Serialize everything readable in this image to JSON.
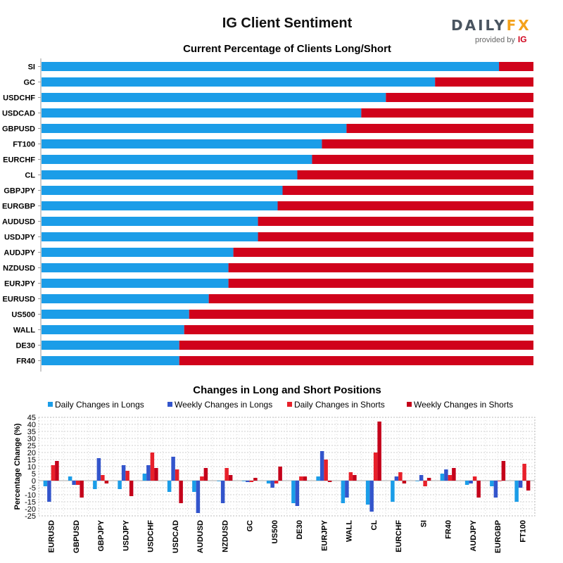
{
  "header": {
    "title": "IG Client Sentiment",
    "logo_daily": "DAILY",
    "logo_fx": "FX",
    "logo_provided": "provided by",
    "logo_ig": "IG"
  },
  "colors": {
    "long": "#1b9de8",
    "short": "#d0021b",
    "daily_long": "#1b9de8",
    "weekly_long": "#3355cc",
    "daily_short": "#e8202a",
    "weekly_short": "#c4001a",
    "grid": "#cccccc"
  },
  "chart_data": [
    {
      "type": "bar",
      "orientation": "horizontal-stacked",
      "title": "Current Percentage of Clients Long/Short",
      "xlim": [
        0,
        100
      ],
      "categories": [
        "SI",
        "GC",
        "USDCHF",
        "USDCAD",
        "GBPUSD",
        "FT100",
        "EURCHF",
        "CL",
        "GBPJPY",
        "EURGBP",
        "AUDUSD",
        "USDJPY",
        "AUDJPY",
        "NZDUSD",
        "EURJPY",
        "EURUSD",
        "US500",
        "WALL",
        "DE30",
        "FR40"
      ],
      "series": [
        {
          "name": "Long",
          "values": [
            93,
            80,
            70,
            65,
            62,
            57,
            55,
            52,
            49,
            48,
            44,
            44,
            39,
            38,
            38,
            34,
            30,
            29,
            28,
            28
          ]
        },
        {
          "name": "Short",
          "values": [
            7,
            20,
            30,
            35,
            38,
            43,
            45,
            48,
            51,
            52,
            56,
            56,
            61,
            62,
            62,
            66,
            70,
            71,
            72,
            72
          ]
        }
      ]
    },
    {
      "type": "bar",
      "title": "Changes in Long and Short Positions",
      "ylabel": "Percentage Change (%)",
      "ylim": [
        -25,
        45
      ],
      "yticks": [
        "45",
        "40",
        "35",
        "30",
        "25",
        "20",
        "15",
        "10",
        "5",
        "0",
        "-5",
        "-10",
        "-15",
        "-20",
        "-25"
      ],
      "ytick_values": [
        45,
        40,
        35,
        30,
        25,
        20,
        15,
        10,
        5,
        0,
        -5,
        -10,
        -15,
        -20,
        -25
      ],
      "legend_position": "top",
      "categories": [
        "EURUSD",
        "GBPUSD",
        "GBPJPY",
        "USDJPY",
        "USDCHF",
        "USDCAD",
        "AUDUSD",
        "NZDUSD",
        "GC",
        "US500",
        "DE30",
        "EURJPY",
        "WALL",
        "CL",
        "EURCHF",
        "SI",
        "FR40",
        "AUDJPY",
        "EURGBP",
        "FT100"
      ],
      "series": [
        {
          "name": "Daily Changes in Longs",
          "values": [
            -4,
            3,
            -6,
            -6,
            5,
            -8,
            -8,
            0,
            0,
            -2,
            -16,
            3,
            -16,
            -17,
            -15,
            0,
            5,
            -3,
            -4,
            -15
          ]
        },
        {
          "name": "Weekly Changes in Longs",
          "values": [
            -15,
            -3,
            16,
            11,
            11,
            17,
            -23,
            -16,
            -1,
            -5,
            -18,
            21,
            -12,
            -22,
            3,
            4,
            8,
            -2,
            -12,
            -5
          ]
        },
        {
          "name": "Daily Changes in Shorts",
          "values": [
            11,
            -3,
            4,
            7,
            20,
            8,
            3,
            9,
            -1,
            -2,
            3,
            15,
            6,
            20,
            6,
            -4,
            4,
            3,
            0,
            12
          ]
        },
        {
          "name": "Weekly Changes in Shorts",
          "values": [
            14,
            -12,
            -2,
            -11,
            9,
            -16,
            9,
            4,
            2,
            10,
            3,
            -1,
            4,
            42,
            -2,
            2,
            9,
            -12,
            14,
            -7
          ]
        }
      ]
    }
  ]
}
